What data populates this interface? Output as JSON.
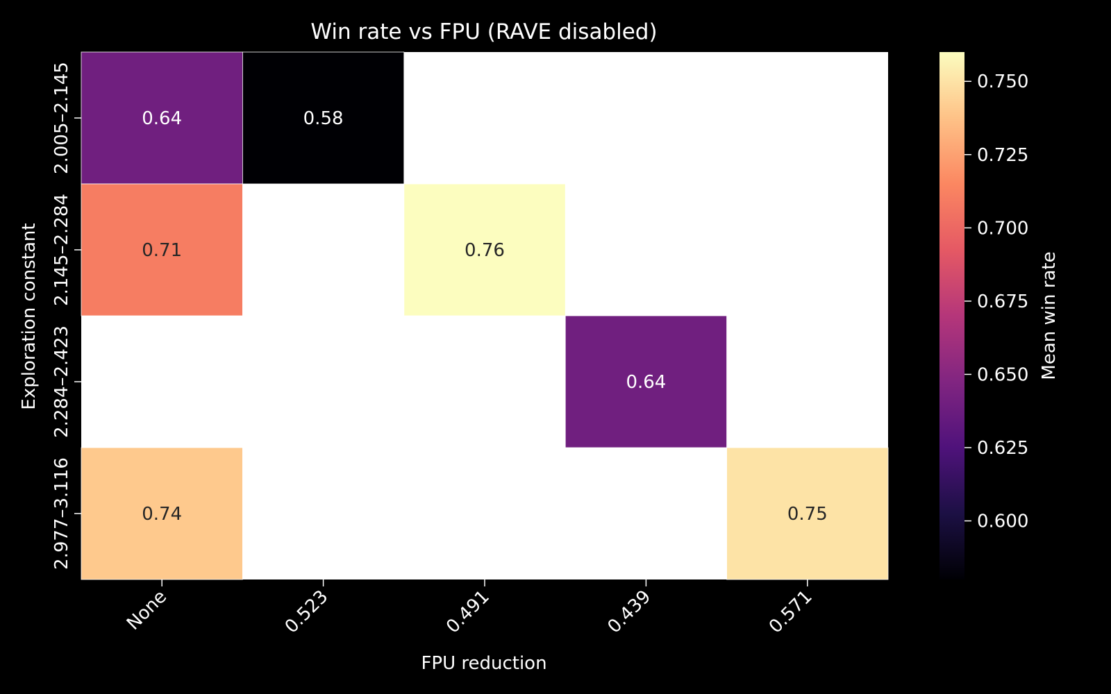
{
  "chart_data": {
    "type": "heatmap",
    "title": "Win rate vs FPU (RAVE disabled)",
    "xlabel": "FPU reduction",
    "ylabel": "Exploration constant",
    "x_categories": [
      "None",
      "0.523",
      "0.491",
      "0.439",
      "0.571"
    ],
    "y_categories": [
      "2.005–2.145",
      "2.145–2.284",
      "2.284–2.423",
      "2.977–3.116"
    ],
    "values": [
      [
        0.64,
        0.58,
        null,
        null,
        null
      ],
      [
        0.71,
        null,
        0.76,
        null,
        null
      ],
      [
        null,
        null,
        null,
        0.64,
        null
      ],
      [
        0.74,
        null,
        null,
        null,
        0.75
      ]
    ],
    "annotation_format": "0.00",
    "missing_color": "#ffffff",
    "colorbar": {
      "label": "Mean win rate",
      "colormap": "magma",
      "range": [
        0.58,
        0.76
      ],
      "ticks": [
        0.6,
        0.625,
        0.65,
        0.675,
        0.7,
        0.725,
        0.75
      ],
      "tick_labels": [
        "0.600",
        "0.625",
        "0.650",
        "0.675",
        "0.700",
        "0.725",
        "0.750"
      ]
    }
  },
  "colors": {
    "background": "#000000",
    "text": "#ffffff",
    "cell_border": "#ffffff"
  }
}
